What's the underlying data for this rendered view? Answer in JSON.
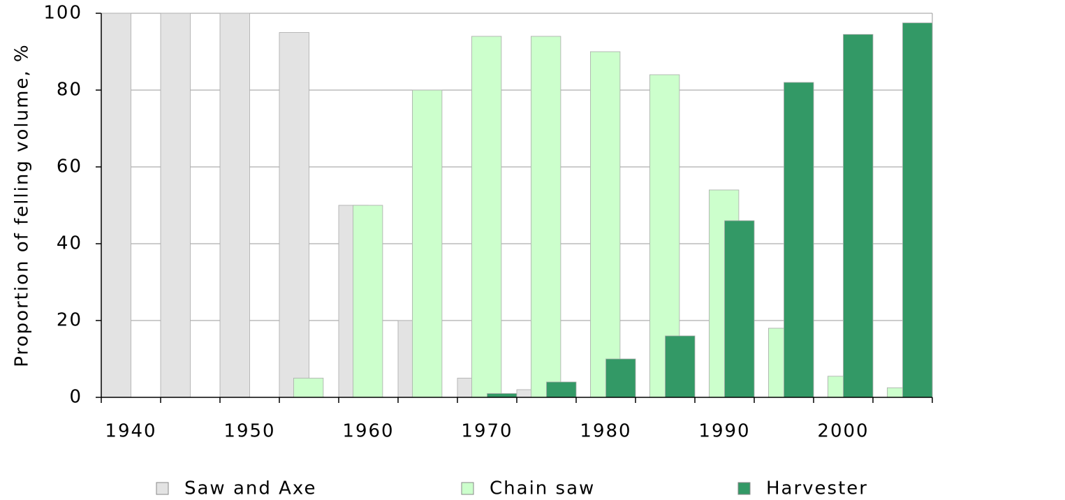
{
  "chart_data": {
    "type": "bar",
    "ylabel": "Proportion of felling volume, %",
    "categories": [
      "1940",
      null,
      "1950",
      null,
      "1960",
      null,
      "1970",
      null,
      "1980",
      null,
      "1990",
      null,
      "2000",
      null
    ],
    "series": [
      {
        "name": "Saw and Axe",
        "color": "#e3e3e3",
        "values": [
          100,
          100,
          100,
          95,
          50,
          20,
          5,
          2,
          0,
          0,
          0,
          0,
          0,
          0
        ]
      },
      {
        "name": "Chain saw",
        "color": "#ccffcc",
        "values": [
          0,
          0,
          0,
          5,
          50,
          80,
          94,
          94,
          90,
          84,
          54,
          18,
          5.5,
          2.5
        ]
      },
      {
        "name": "Harvester",
        "color": "#339966",
        "values": [
          0,
          0,
          0,
          0,
          0,
          0,
          1,
          4,
          10,
          16,
          46,
          82,
          94.5,
          97.5
        ]
      }
    ],
    "ylim": [
      0,
      100
    ],
    "yticks": [
      0,
      20,
      40,
      60,
      80,
      100
    ],
    "grid": true,
    "legend": "bottom"
  }
}
